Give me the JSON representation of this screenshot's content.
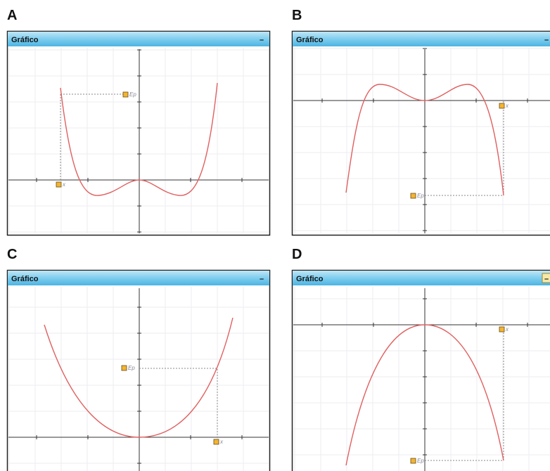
{
  "panels": [
    {
      "label": "A",
      "window_title": "Gráfico",
      "minimize": "–",
      "ep_label": "Ep",
      "x_label": "x"
    },
    {
      "label": "B",
      "window_title": "Gráfico",
      "minimize": "–",
      "ep_label": "Ep",
      "x_label": "x"
    },
    {
      "label": "C",
      "window_title": "Gráfico",
      "minimize": "–",
      "ep_label": "Ep",
      "x_label": "x"
    },
    {
      "label": "D",
      "window_title": "Gráfico",
      "minimize": "–",
      "ep_label": "Ep",
      "x_label": "x"
    }
  ]
}
